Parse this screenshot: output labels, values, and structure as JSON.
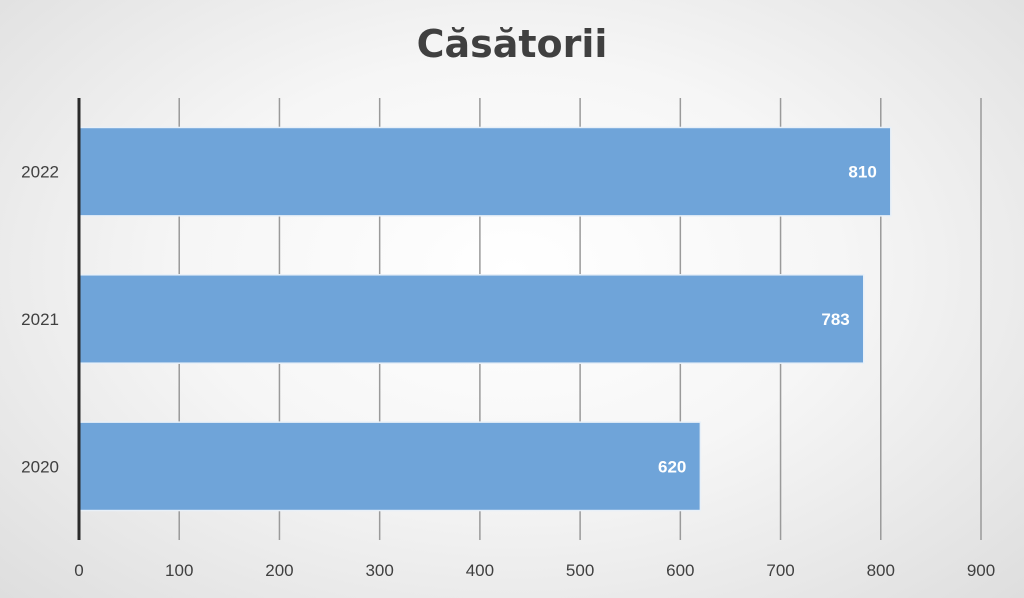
{
  "chart_data": {
    "type": "bar",
    "orientation": "horizontal",
    "title": "Căsătorii",
    "categories": [
      "2022",
      "2021",
      "2020"
    ],
    "values": [
      810,
      783,
      620
    ],
    "data_labels": [
      "810",
      "783",
      "620"
    ],
    "xlim": [
      0,
      900
    ],
    "x_ticks": [
      0,
      100,
      200,
      300,
      400,
      500,
      600,
      700,
      800,
      900
    ],
    "x_tick_labels": [
      "0",
      "100",
      "200",
      "300",
      "400",
      "500",
      "600",
      "700",
      "800",
      "900"
    ],
    "grid": "vertical",
    "legend": "none",
    "colors": {
      "bar": "#6fa4d9",
      "bar_edge": "#e8f0f8",
      "grid": "#9a9a9a",
      "axis": "#2a2a2a",
      "text": "#404040",
      "data_label": "#ffffff"
    }
  }
}
